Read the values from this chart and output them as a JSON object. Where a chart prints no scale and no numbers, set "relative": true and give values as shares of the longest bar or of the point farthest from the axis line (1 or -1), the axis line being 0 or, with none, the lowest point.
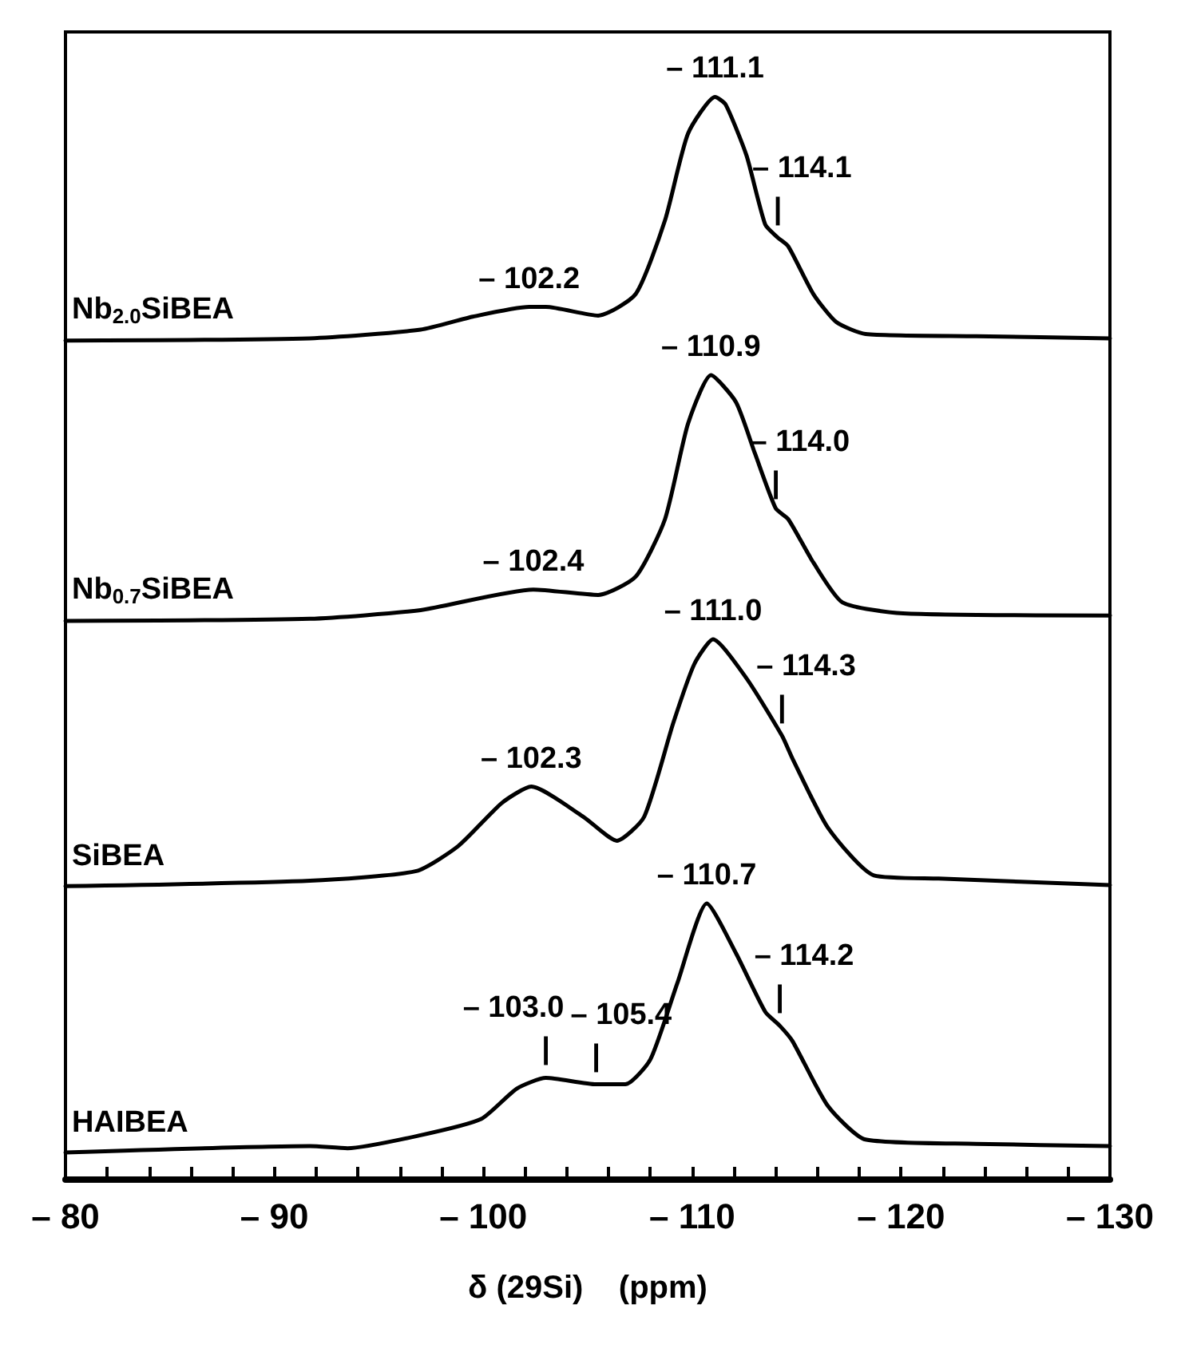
{
  "chart_data": {
    "type": "line",
    "relative": true,
    "xlabel": "δ (29Si)    (ppm)",
    "xlim": [
      -80,
      -130
    ],
    "xticks": [
      {
        "value": -80,
        "label": "– 80"
      },
      {
        "value": -82,
        "label": null
      },
      {
        "value": -84,
        "label": null
      },
      {
        "value": -86,
        "label": null
      },
      {
        "value": -88,
        "label": null
      },
      {
        "value": -90,
        "label": "– 90"
      },
      {
        "value": -92,
        "label": null
      },
      {
        "value": -94,
        "label": null
      },
      {
        "value": -96,
        "label": null
      },
      {
        "value": -98,
        "label": null
      },
      {
        "value": -100,
        "label": "– 100"
      },
      {
        "value": -102,
        "label": null
      },
      {
        "value": -104,
        "label": null
      },
      {
        "value": -106,
        "label": null
      },
      {
        "value": -108,
        "label": null
      },
      {
        "value": -110,
        "label": "– 110"
      },
      {
        "value": -112,
        "label": null
      },
      {
        "value": -114,
        "label": null
      },
      {
        "value": -116,
        "label": null
      },
      {
        "value": -118,
        "label": null
      },
      {
        "value": -120,
        "label": "– 120"
      },
      {
        "value": -122,
        "label": null
      },
      {
        "value": -124,
        "label": null
      },
      {
        "value": -126,
        "label": null
      },
      {
        "value": -128,
        "label": null
      },
      {
        "value": -130,
        "label": "– 130"
      }
    ],
    "tick_labels": "x",
    "grid": false,
    "legend": false,
    "marker": "none",
    "line_style": "solid",
    "series": [
      {
        "name": "Nb$_{2.0}$SiBEA",
        "color": "#000000",
        "x": [
          -80,
          -91.7,
          -97.0,
          -99.5,
          -102.2,
          -103.0,
          -105.5,
          -107.3,
          -108.7,
          -109.8,
          -111.1,
          -111.6,
          -112.6,
          -113.5,
          -114.1,
          -114.6,
          -115.8,
          -116.9,
          -118.3,
          -123.6,
          -130
        ],
        "values": [
          0.775,
          0.777,
          0.785,
          0.797,
          0.806,
          0.806,
          0.798,
          0.818,
          0.886,
          0.966,
          1.0,
          0.993,
          0.946,
          0.882,
          0.87,
          0.862,
          0.818,
          0.792,
          0.781,
          0.779,
          0.777
        ]
      },
      {
        "name": "Nb$_{0.7}$SiBEA",
        "color": "#000000",
        "x": [
          -80,
          -91.7,
          -97.0,
          -102.4,
          -105.5,
          -107.3,
          -108.7,
          -109.8,
          -110.9,
          -112.1,
          -113.0,
          -114.0,
          -114.6,
          -115.8,
          -117.2,
          -120.1,
          -130
        ],
        "values": [
          0.516,
          0.518,
          0.526,
          0.545,
          0.54,
          0.557,
          0.61,
          0.698,
          0.743,
          0.718,
          0.671,
          0.62,
          0.61,
          0.57,
          0.533,
          0.523,
          0.521
        ]
      },
      {
        "name": "SiBEA",
        "color": "#000000",
        "x": [
          -80,
          -91.7,
          -96.8,
          -98.8,
          -100.9,
          -102.3,
          -104.8,
          -106.4,
          -107.7,
          -109.1,
          -110.1,
          -111.0,
          -112.6,
          -114.3,
          -114.8,
          -116.5,
          -118.7,
          -121.8,
          -130
        ],
        "values": [
          0.271,
          0.276,
          0.285,
          0.308,
          0.348,
          0.363,
          0.335,
          0.313,
          0.335,
          0.422,
          0.476,
          0.499,
          0.463,
          0.41,
          0.389,
          0.325,
          0.281,
          0.278,
          0.272
        ]
      },
      {
        "name": "HAIBEA",
        "color": "#000000",
        "x": [
          -80,
          -91.7,
          -93.5,
          -97.0,
          -99.9,
          -101.6,
          -103.0,
          -105.4,
          -106.8,
          -108.0,
          -109.3,
          -110.7,
          -112.1,
          -113.5,
          -114.2,
          -114.8,
          -116.5,
          -118.3,
          -123.6,
          -130
        ],
        "values": [
          0.025,
          0.031,
          0.029,
          0.041,
          0.056,
          0.084,
          0.094,
          0.088,
          0.088,
          0.111,
          0.182,
          0.255,
          0.209,
          0.155,
          0.142,
          0.128,
          0.068,
          0.037,
          0.033,
          0.031
        ]
      }
    ],
    "annotations": [
      {
        "text": "– 111.1",
        "x": -111.1,
        "y": 1.0
      },
      {
        "text": "– 114.1",
        "x": -114.1,
        "y": 0.87
      },
      {
        "text": "|",
        "x": -114.1,
        "y": 0.87
      },
      {
        "text": "– 102.2",
        "x": -102.2,
        "y": 0.806
      },
      {
        "text": "– 110.9",
        "x": -110.9,
        "y": 0.743
      },
      {
        "text": "– 114.0",
        "x": -114.0,
        "y": 0.617
      },
      {
        "text": "|",
        "x": -114.0,
        "y": 0.617
      },
      {
        "text": "– 102.4",
        "x": -102.4,
        "y": 0.545
      },
      {
        "text": "– 111.0",
        "x": -111.0,
        "y": 0.499
      },
      {
        "text": "– 114.3",
        "x": -114.3,
        "y": 0.41
      },
      {
        "text": "|",
        "x": -114.3,
        "y": 0.41
      },
      {
        "text": "– 102.3",
        "x": -102.3,
        "y": 0.363
      },
      {
        "text": "– 110.7",
        "x": -110.7,
        "y": 0.255
      },
      {
        "text": "– 114.2",
        "x": -114.2,
        "y": 0.142
      },
      {
        "text": "|",
        "x": -114.2,
        "y": 0.142
      },
      {
        "text": "– 105.4",
        "x": -105.4,
        "y": 0.088
      },
      {
        "text": "|",
        "x": -105.4,
        "y": 0.088
      },
      {
        "text": "– 103.0",
        "x": -103.0,
        "y": 0.094
      },
      {
        "text": "|",
        "x": -103.0,
        "y": 0.094
      }
    ]
  }
}
